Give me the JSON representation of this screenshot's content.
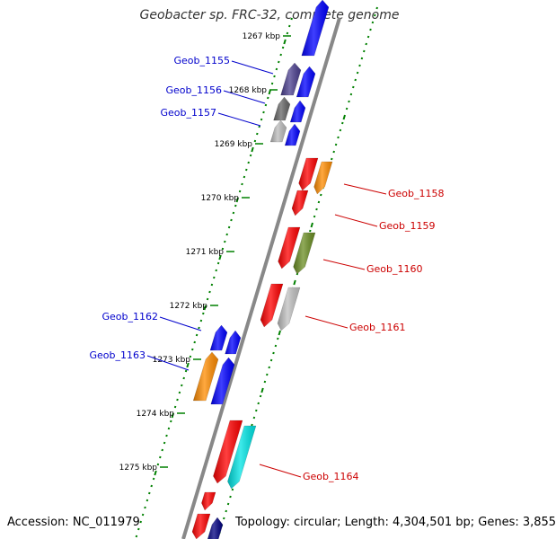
{
  "title": "Geobacter sp. FRC-32, complete genome",
  "footer": {
    "accession": "Accession: NC_011979",
    "summary": "Topology: circular; Length: 4,304,501 bp; Genes: 3,855"
  },
  "colors": {
    "backbone": "#888888",
    "tick": "#008000",
    "label_left": "#0000cc",
    "label_right": "#cc0000"
  },
  "kbp_labels": [
    "1267 kbp",
    "1268 kbp",
    "1269 kbp",
    "1270 kbp",
    "1271 kbp",
    "1272 kbp",
    "1273 kbp",
    "1274 kbp",
    "1275 kbp"
  ],
  "genes": [
    {
      "name": "Geob_1155",
      "side": "left",
      "color": "#4b3f8f"
    },
    {
      "name": "Geob_1156",
      "side": "left",
      "color": "#666666"
    },
    {
      "name": "Geob_1157",
      "side": "left",
      "color": "#bbbbbb"
    },
    {
      "name": "Geob_1158",
      "side": "right",
      "color": "#ff8c00"
    },
    {
      "name": "Geob_1159",
      "side": "right",
      "color": "#ff0000"
    },
    {
      "name": "Geob_1160",
      "side": "right",
      "color": "#6b8e23"
    },
    {
      "name": "Geob_1161",
      "side": "right",
      "color": "#c0c0c0"
    },
    {
      "name": "Geob_1162",
      "side": "left",
      "color": "#0000ff"
    },
    {
      "name": "Geob_1163",
      "side": "left",
      "color": "#ff8c00"
    },
    {
      "name": "Geob_1164",
      "side": "right",
      "color": "#00e5e5"
    }
  ]
}
